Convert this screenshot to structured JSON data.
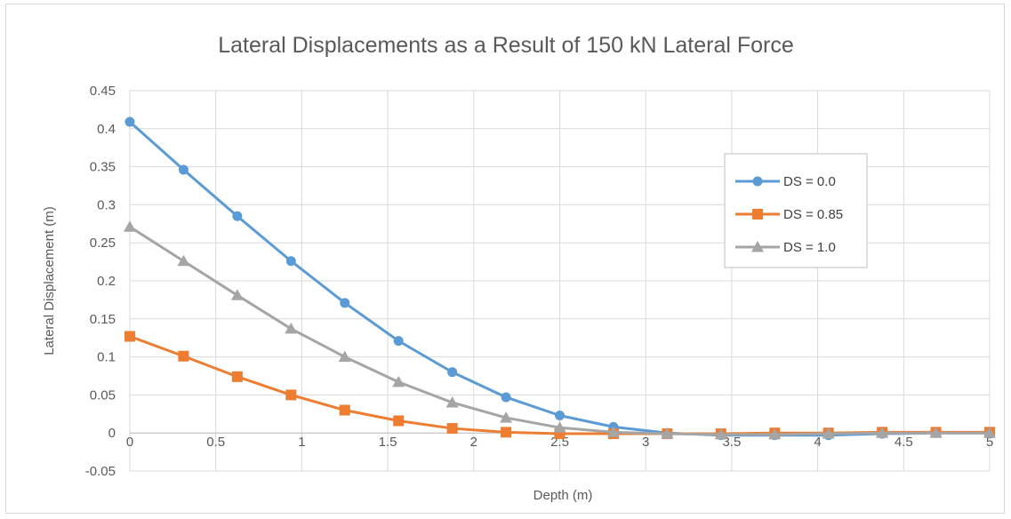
{
  "chart_data": {
    "type": "line",
    "title": "Lateral Displacements as a Result of 150 kN Lateral Force",
    "xlabel": "Depth (m)",
    "ylabel": "Lateral Displacement (m)",
    "xlim": [
      0,
      5
    ],
    "ylim": [
      -0.05,
      0.45
    ],
    "x_ticks": [
      "0",
      "0.5",
      "1",
      "1.5",
      "2",
      "2.5",
      "3",
      "3.5",
      "4",
      "4.5",
      "5"
    ],
    "y_ticks": [
      "-0.05",
      "0",
      "0.05",
      "0.1",
      "0.15",
      "0.2",
      "0.25",
      "0.3",
      "0.35",
      "0.4",
      "0.45"
    ],
    "grid": true,
    "legend_position": "right",
    "x": [
      0,
      0.3125,
      0.625,
      0.9375,
      1.25,
      1.5625,
      1.875,
      2.1875,
      2.5,
      2.8125,
      3.125,
      3.4375,
      3.75,
      4.0625,
      4.375,
      4.6875,
      5.0
    ],
    "series": [
      {
        "name": "DS = 0.0",
        "color": "#5b9bd5",
        "marker": "circle",
        "values": [
          0.409,
          0.346,
          0.285,
          0.226,
          0.171,
          0.121,
          0.08,
          0.047,
          0.023,
          0.008,
          0.0,
          -0.003,
          -0.003,
          -0.003,
          -0.001,
          0.0,
          0.0
        ]
      },
      {
        "name": "DS = 0.85",
        "color": "#ed7d31",
        "marker": "square",
        "values": [
          0.127,
          0.101,
          0.074,
          0.05,
          0.03,
          0.016,
          0.006,
          0.001,
          -0.001,
          -0.001,
          -0.001,
          -0.001,
          0.0,
          0.0,
          0.001,
          0.001,
          0.001
        ]
      },
      {
        "name": "DS = 1.0",
        "color": "#a5a5a5",
        "marker": "triangle",
        "values": [
          0.271,
          0.226,
          0.181,
          0.137,
          0.1,
          0.067,
          0.04,
          0.02,
          0.007,
          0.001,
          -0.001,
          -0.002,
          -0.002,
          -0.001,
          0.0,
          0.0,
          0.0
        ]
      }
    ]
  }
}
